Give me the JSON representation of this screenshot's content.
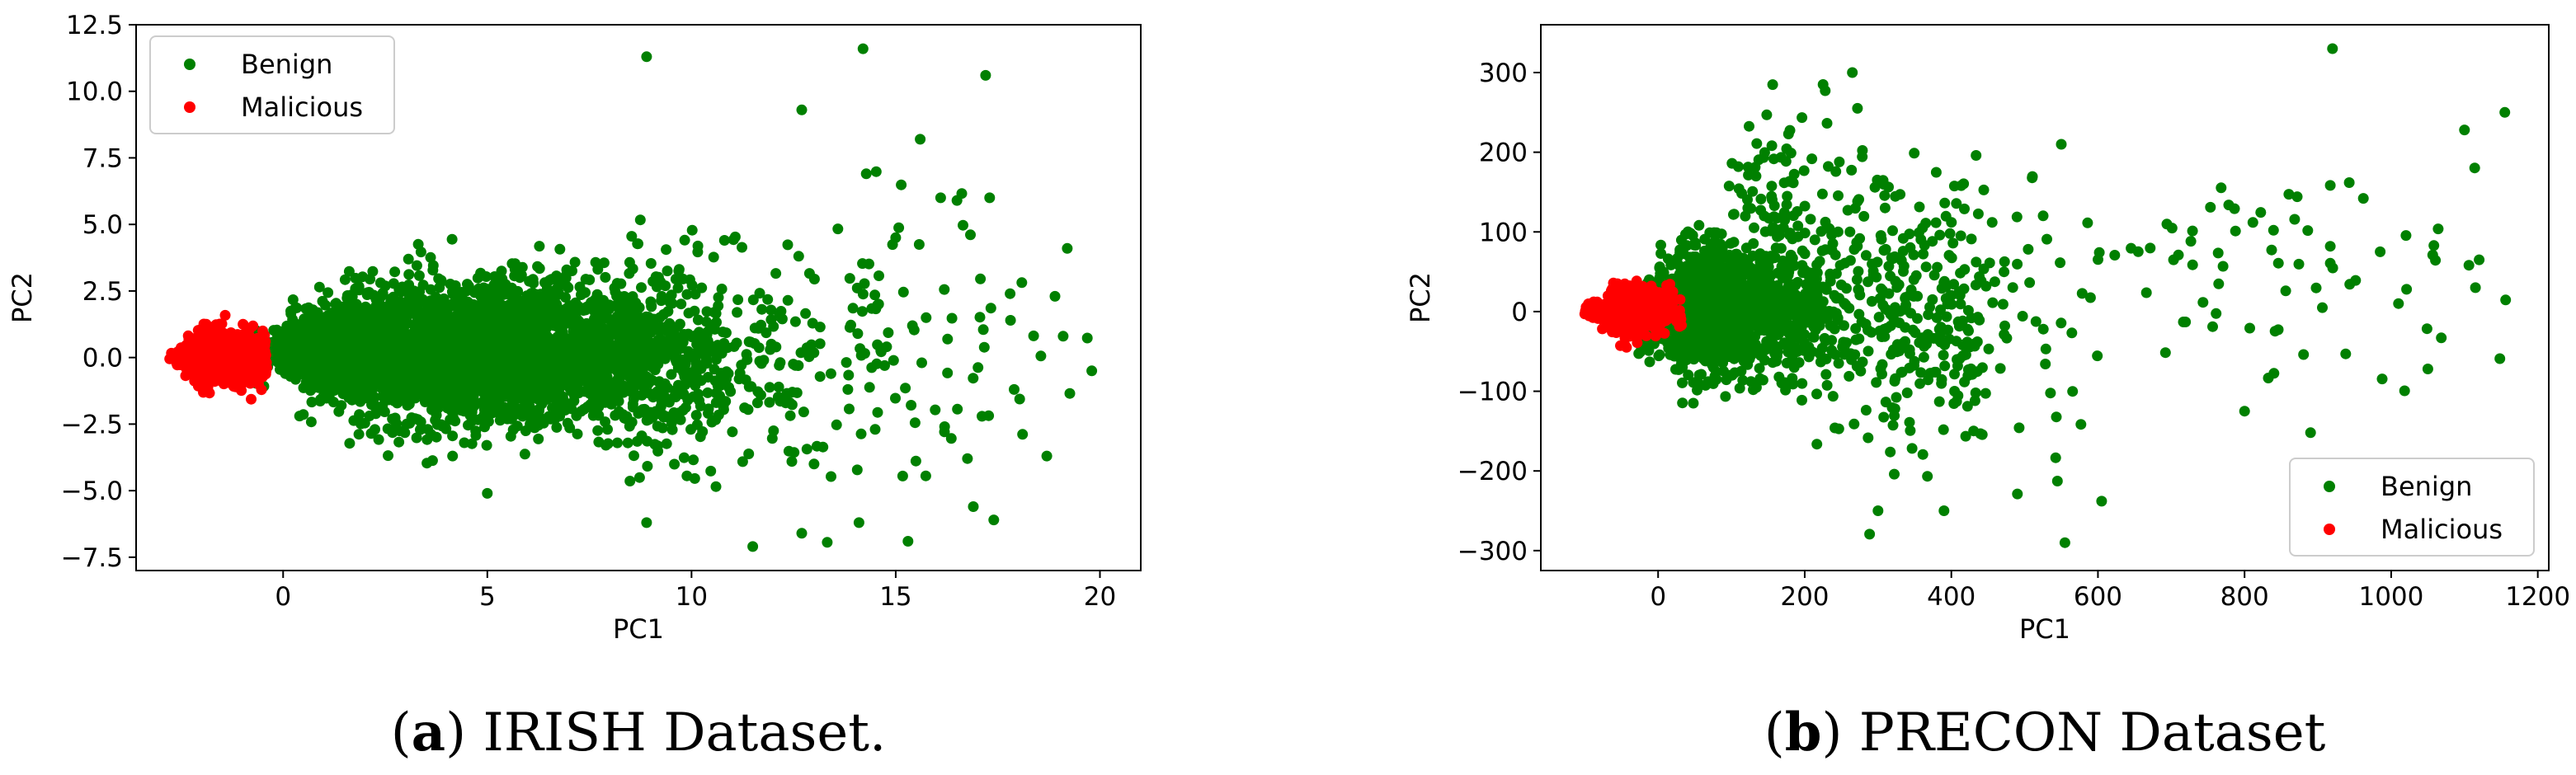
{
  "chart_data": [
    {
      "type": "scatter",
      "caption_prefix": "(",
      "caption_letter": "a",
      "caption_text": ") IRISH Dataset.",
      "xlabel": "PC1",
      "ylabel": "PC2",
      "xlim": [
        -3.6,
        21.0
      ],
      "ylim": [
        -8.0,
        12.5
      ],
      "xticks": [
        0,
        5,
        10,
        15,
        20
      ],
      "xtick_labels": [
        "0",
        "5",
        "10",
        "15",
        "20"
      ],
      "yticks": [
        -7.5,
        -5.0,
        -2.5,
        0.0,
        2.5,
        5.0,
        7.5,
        10.0,
        12.5
      ],
      "ytick_labels": [
        "−7.5",
        "−5.0",
        "−2.5",
        "0.0",
        "2.5",
        "5.0",
        "7.5",
        "10.0",
        "12.5"
      ],
      "legend_position": "top-left",
      "series": [
        {
          "name": "Benign",
          "color": "#008000",
          "clusters": [
            {
              "x_range": [
                -1.5,
                9.0
              ],
              "center": [
                4.8,
                0.2
              ],
              "spread": [
                2.2,
                1.3
              ],
              "count": 2600
            },
            {
              "x_range": [
                -0.5,
                3.0
              ],
              "center": [
                1.2,
                0.3
              ],
              "spread": [
                1.0,
                0.7
              ],
              "count": 700
            },
            {
              "x_range": [
                7.0,
                12.5
              ],
              "center": [
                9.0,
                0.0
              ],
              "spread": [
                1.5,
                1.9
              ],
              "count": 500
            },
            {
              "x_range": [
                10.0,
                20.0
              ],
              "center": [
                13.0,
                0.0
              ],
              "spread": [
                2.5,
                2.8
              ],
              "count": 160
            }
          ],
          "points": [
            [
              14.2,
              11.6
            ],
            [
              8.9,
              11.3
            ],
            [
              17.2,
              10.6
            ],
            [
              12.7,
              9.3
            ],
            [
              15.6,
              8.2
            ],
            [
              19.2,
              4.1
            ],
            [
              17.3,
              6.0
            ],
            [
              18.9,
              2.3
            ],
            [
              19.8,
              -0.5
            ],
            [
              19.1,
              0.8
            ],
            [
              17.9,
              -1.2
            ],
            [
              18.7,
              -3.7
            ],
            [
              17.4,
              -6.1
            ],
            [
              16.9,
              -5.6
            ],
            [
              15.3,
              -6.9
            ],
            [
              11.5,
              -7.1
            ],
            [
              12.7,
              -6.6
            ],
            [
              14.1,
              -6.2
            ],
            [
              13.0,
              -4.0
            ],
            [
              8.9,
              -6.2
            ],
            [
              5.0,
              -5.1
            ],
            [
              17.8,
              2.4
            ],
            [
              16.5,
              5.9
            ],
            [
              16.1,
              6.0
            ],
            [
              15.0,
              4.5
            ]
          ]
        },
        {
          "name": "Malicious",
          "color": "#ff0000",
          "clusters": [
            {
              "x_range": [
                -2.8,
                -0.4
              ],
              "center": [
                -1.5,
                0.0
              ],
              "spread": [
                0.6,
                0.45
              ],
              "count": 1100
            }
          ],
          "points": [
            [
              -2.7,
              0.0
            ],
            [
              -0.5,
              1.0
            ],
            [
              -0.6,
              -1.0
            ]
          ]
        }
      ]
    },
    {
      "type": "scatter",
      "caption_prefix": "(",
      "caption_letter": "b",
      "caption_text": ") PRECON Dataset",
      "xlabel": "PC1",
      "ylabel": "PC2",
      "xlim": [
        -160,
        1215
      ],
      "ylim": [
        -325,
        360
      ],
      "xticks": [
        0,
        200,
        400,
        600,
        800,
        1000,
        1200
      ],
      "xtick_labels": [
        "0",
        "200",
        "400",
        "600",
        "800",
        "1000",
        "1200"
      ],
      "yticks": [
        -300,
        -200,
        -100,
        0,
        100,
        200,
        300
      ],
      "ytick_labels": [
        "−300",
        "−200",
        "−100",
        "0",
        "100",
        "200",
        "300"
      ],
      "legend_position": "bottom-right",
      "series": [
        {
          "name": "Benign",
          "color": "#008000",
          "clusters": [
            {
              "x_range": [
                -60,
                260
              ],
              "center": [
                80,
                0
              ],
              "spread": [
                65,
                40
              ],
              "count": 1300
            },
            {
              "x_range": [
                120,
                600
              ],
              "center": [
                320,
                0
              ],
              "spread": [
                120,
                90
              ],
              "count": 420
            },
            {
              "x_range": [
                80,
                300
              ],
              "center": [
                170,
                150
              ],
              "spread": [
                50,
                55
              ],
              "count": 90
            },
            {
              "x_range": [
                600,
                1160
              ],
              "center": [
                850,
                60
              ],
              "spread": [
                150,
                80
              ],
              "count": 70
            }
          ],
          "points": [
            [
              920,
              330
            ],
            [
              1155,
              250
            ],
            [
              1100,
              228
            ],
            [
              265,
              300
            ],
            [
              225,
              285
            ],
            [
              550,
              210
            ],
            [
              1120,
              65
            ],
            [
              1115,
              30
            ],
            [
              1050,
              -72
            ],
            [
              800,
              -125
            ],
            [
              890,
              -152
            ],
            [
              555,
              -290
            ],
            [
              605,
              -238
            ],
            [
              300,
              -250
            ],
            [
              390,
              -250
            ],
            [
              1010,
              10
            ],
            [
              985,
              75
            ]
          ]
        },
        {
          "name": "Malicious",
          "color": "#ff0000",
          "clusters": [
            {
              "x_range": [
                -100,
                35
              ],
              "center": [
                -35,
                0
              ],
              "spread": [
                28,
                14
              ],
              "count": 650
            }
          ],
          "points": [
            [
              -100,
              -3
            ],
            [
              30,
              15
            ],
            [
              25,
              -12
            ]
          ]
        }
      ]
    }
  ]
}
